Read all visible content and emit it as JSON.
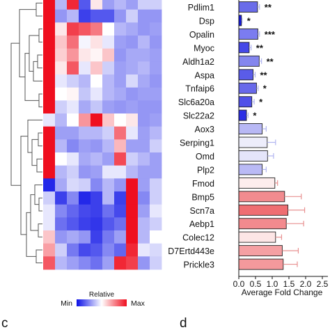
{
  "chart_data": [
    {
      "type": "heatmap",
      "colorscale": {
        "min_label": "Min",
        "max_label": "Max",
        "title": "Relative",
        "min_color": "#0b10e6",
        "mid_color": "#ffffff",
        "max_color": "#ef0f1f"
      },
      "rows": [
        [
          1.0,
          0.35,
          0.95,
          0.15,
          0.55,
          0.3,
          0.35,
          0.3,
          0.4,
          0.4
        ],
        [
          1.0,
          0.28,
          0.35,
          0.1,
          0.15,
          0.15,
          0.28,
          0.4,
          0.28,
          0.28
        ],
        [
          1.0,
          0.55,
          0.9,
          0.85,
          0.78,
          0.5,
          0.35,
          0.32,
          0.28,
          0.3
        ],
        [
          1.0,
          0.62,
          0.8,
          0.48,
          0.56,
          0.45,
          0.3,
          0.28,
          0.35,
          0.28
        ],
        [
          1.0,
          0.6,
          0.72,
          0.55,
          0.52,
          0.62,
          0.28,
          0.32,
          0.32,
          0.3
        ],
        [
          1.0,
          0.55,
          0.85,
          0.45,
          0.62,
          0.4,
          0.3,
          0.32,
          0.35,
          0.3
        ],
        [
          1.0,
          0.45,
          0.4,
          0.35,
          0.5,
          0.35,
          0.3,
          0.42,
          0.32,
          0.28
        ],
        [
          1.0,
          0.5,
          0.52,
          0.38,
          0.45,
          0.35,
          0.32,
          0.28,
          0.3,
          0.3
        ],
        [
          1.0,
          0.4,
          0.45,
          0.32,
          0.38,
          0.3,
          0.28,
          0.3,
          0.28,
          0.28
        ],
        [
          0.45,
          0.35,
          0.5,
          0.72,
          1.0,
          0.62,
          0.5,
          0.55,
          0.28,
          0.3
        ],
        [
          1.0,
          0.3,
          0.3,
          0.35,
          0.35,
          0.4,
          0.8,
          0.45,
          0.3,
          0.35
        ],
        [
          1.0,
          0.35,
          0.25,
          0.3,
          0.28,
          0.35,
          0.65,
          0.3,
          0.3,
          0.4
        ],
        [
          1.0,
          0.5,
          0.45,
          0.32,
          0.35,
          0.3,
          0.88,
          0.4,
          0.35,
          0.3
        ],
        [
          1.0,
          0.35,
          0.4,
          0.28,
          0.3,
          0.45,
          0.45,
          0.35,
          0.3,
          0.3
        ],
        [
          0.05,
          0.32,
          0.42,
          0.4,
          0.25,
          0.35,
          0.28,
          1.0,
          0.3,
          0.4
        ],
        [
          0.4,
          0.1,
          0.25,
          0.05,
          0.1,
          0.35,
          0.1,
          1.0,
          0.25,
          0.4
        ],
        [
          0.45,
          0.25,
          0.18,
          0.12,
          0.1,
          0.2,
          0.12,
          1.0,
          0.3,
          0.45
        ],
        [
          0.45,
          0.2,
          0.15,
          0.1,
          0.08,
          0.15,
          0.2,
          1.0,
          0.35,
          0.4
        ],
        [
          0.62,
          0.28,
          0.32,
          0.28,
          0.1,
          0.22,
          0.3,
          1.0,
          0.35,
          0.5
        ],
        [
          0.7,
          0.4,
          0.22,
          0.12,
          0.15,
          0.25,
          0.18,
          0.95,
          0.45,
          0.42
        ],
        [
          0.85,
          0.35,
          0.3,
          0.25,
          0.2,
          0.3,
          0.95,
          0.9,
          0.28,
          0.4
        ]
      ]
    },
    {
      "type": "bar",
      "orientation": "horizontal",
      "categories": [
        "Pdlim1",
        "Dsp",
        "Opalin",
        "Myoc",
        "Aldh1a2",
        "Aspa",
        "Tnfaip6",
        "Slc6a20a",
        "Slc22a2",
        "Aox3",
        "Serping1",
        "Omd",
        "Plp2",
        "Fmod",
        "Bmp5",
        "Scn7a",
        "Aebp1",
        "Colec12",
        "D7Ertd443e",
        "Prickle3"
      ],
      "values": [
        0.56,
        0.08,
        0.57,
        0.31,
        0.61,
        0.43,
        0.53,
        0.39,
        0.23,
        0.7,
        0.85,
        0.86,
        0.7,
        1.08,
        1.37,
        1.47,
        1.42,
        1.1,
        1.3,
        1.33
      ],
      "errors": [
        0.06,
        0.02,
        0.05,
        0.06,
        0.07,
        0.06,
        0.05,
        0.07,
        0.05,
        0.12,
        0.25,
        0.18,
        0.12,
        0.08,
        0.5,
        0.5,
        0.52,
        0.18,
        0.48,
        0.42
      ],
      "significance": [
        "**",
        "*",
        "***",
        "**",
        "**",
        "**",
        "*",
        "*",
        "*",
        "",
        "",
        "",
        "",
        "",
        "",
        "",
        "",
        "",
        "",
        ""
      ],
      "colors": [
        "#6a6ce9",
        "#1419e3",
        "#7b7cf0",
        "#4548e8",
        "#8486ee",
        "#5a5ce9",
        "#6869ea",
        "#4f51e8",
        "#2a2de5",
        "#b8b8f5",
        "#ededfb",
        "#e5e5fa",
        "#babaf5",
        "#fdeded",
        "#f28b8f",
        "#ef6e72",
        "#f38a8e",
        "#fde6e6",
        "#f5a0a3",
        "#f4999c"
      ],
      "xlabel": "Average Fold Change",
      "xticks": [
        "0.0",
        "0.5",
        "1.0",
        "1.5",
        "2.0",
        "2.5"
      ],
      "xlim": [
        0,
        2.5
      ]
    }
  ],
  "panel_labels": {
    "c": "c",
    "d": "d"
  }
}
